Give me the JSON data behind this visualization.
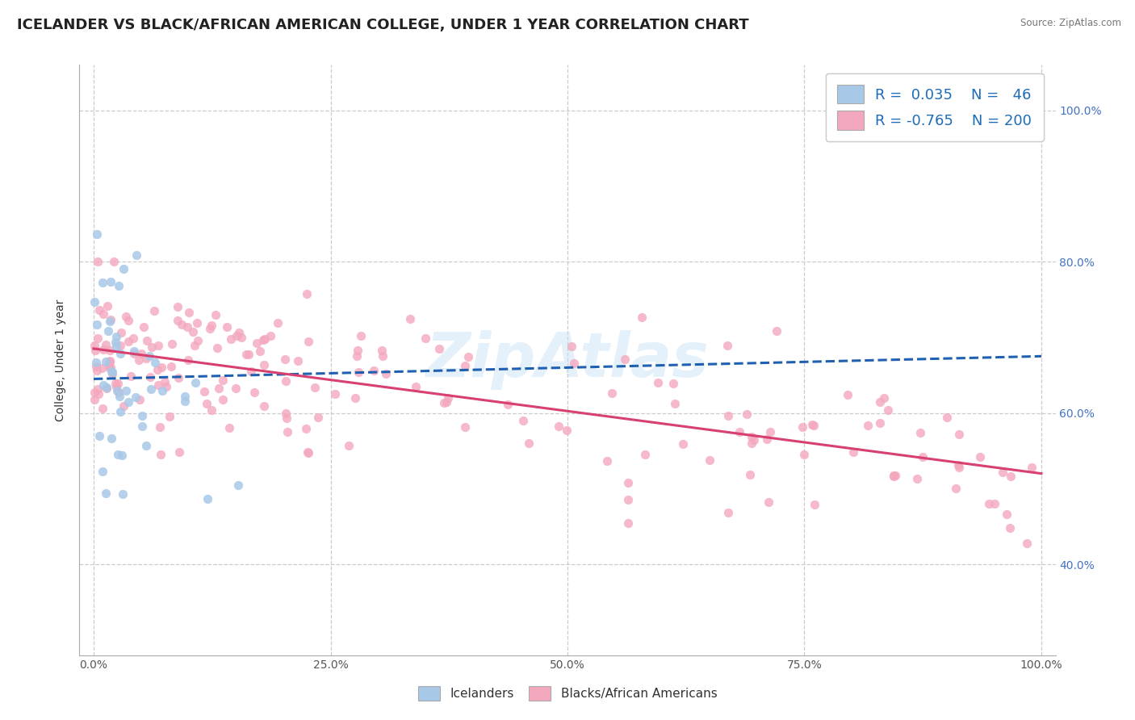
{
  "title": "ICELANDER VS BLACK/AFRICAN AMERICAN COLLEGE, UNDER 1 YEAR CORRELATION CHART",
  "source": "Source: ZipAtlas.com",
  "ylabel": "College, Under 1 year",
  "r_blue": 0.035,
  "n_blue": 46,
  "r_pink": -0.765,
  "n_pink": 200,
  "legend_blue_label": "Icelanders",
  "legend_pink_label": "Blacks/African Americans",
  "blue_color": "#a8c8e8",
  "pink_color": "#f4a8be",
  "blue_line_color": "#2060b0",
  "pink_line_color": "#d84070",
  "title_fontsize": 13,
  "axis_label_fontsize": 10,
  "tick_fontsize": 10,
  "legend_fontsize": 13,
  "background_color": "#ffffff",
  "watermark": "ZipAtlas",
  "yticks": [
    0.4,
    0.6,
    0.8,
    1.0
  ],
  "ytick_labels": [
    "40.0%",
    "60.0%",
    "80.0%",
    "100.0%"
  ],
  "xticks": [
    0.0,
    0.25,
    0.5,
    0.75,
    1.0
  ],
  "xtick_labels": [
    "0.0%",
    "25.0%",
    "50.0%",
    "75.0%",
    "100.0%"
  ],
  "ylim_min": 0.28,
  "ylim_max": 1.06,
  "xlim_min": -0.015,
  "xlim_max": 1.015,
  "blue_trend_x0": 0.0,
  "blue_trend_x1": 1.0,
  "blue_trend_y0": 0.645,
  "blue_trend_y1": 0.675,
  "pink_trend_x0": 0.0,
  "pink_trend_x1": 1.0,
  "pink_trend_y0": 0.685,
  "pink_trend_y1": 0.52
}
